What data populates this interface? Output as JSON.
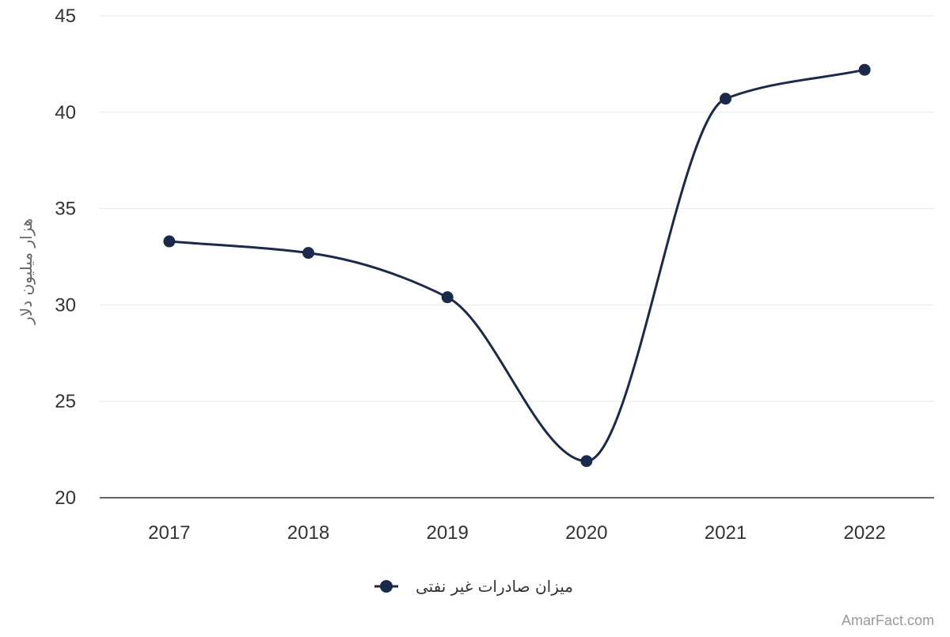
{
  "chart_data": {
    "type": "line",
    "smooth": true,
    "categories": [
      "2017",
      "2018",
      "2019",
      "2020",
      "2021",
      "2022"
    ],
    "series": [
      {
        "name": "میزان صادرات غیر نفتی",
        "values": [
          33.3,
          32.7,
          30.4,
          21.9,
          40.7,
          42.2
        ],
        "color": "#1b2a4a"
      }
    ],
    "ylabel": "هزار میلیون دلار",
    "xlabel": "",
    "ylim": [
      20,
      45
    ],
    "yticks": [
      20,
      25,
      30,
      35,
      40,
      45
    ],
    "grid": true,
    "legend_position": "bottom-center",
    "watermark": "AmarFact.com",
    "colors": {
      "grid": "#e6e6e6",
      "axis": "#333333",
      "text": "#333333",
      "muted": "#999999"
    }
  }
}
